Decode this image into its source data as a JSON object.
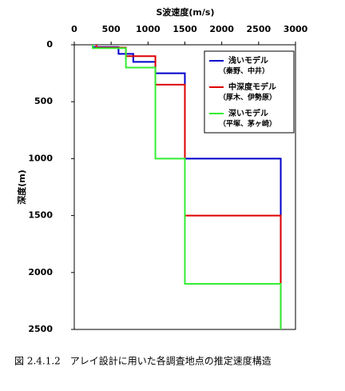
{
  "chart_data": {
    "type": "line",
    "title": "S波速度(m/s)",
    "y_label": "深度(m)",
    "caption": "図 2.4.1.2　アレイ設計に用いた各調査地点の推定速度構造",
    "xlim": [
      0,
      3000
    ],
    "xticks": [
      0,
      500,
      1000,
      1500,
      2000,
      2500,
      3000
    ],
    "ylim": [
      0,
      2500
    ],
    "yticks": [
      0,
      500,
      1000,
      1500,
      2000,
      2500
    ],
    "y_inverted": true,
    "x_axis_top": true,
    "legend_position": "upper right",
    "series": [
      {
        "name": "浅いモデル",
        "note": "（秦野、中井）",
        "color": "#0000cc",
        "x": [
          250,
          250,
          600,
          600,
          800,
          800,
          1100,
          1100,
          1500,
          1500,
          2800,
          2800
        ],
        "values": [
          0,
          20,
          20,
          80,
          80,
          150,
          150,
          250,
          250,
          1000,
          1000,
          2500
        ]
      },
      {
        "name": "中深度モデル",
        "note": "（厚木、伊勢原）",
        "color": "#dd0000",
        "x": [
          300,
          300,
          700,
          700,
          1100,
          1100,
          1500,
          1500,
          2800,
          2800
        ],
        "values": [
          0,
          25,
          25,
          100,
          100,
          350,
          350,
          1500,
          1500,
          2500
        ]
      },
      {
        "name": "深いモデル",
        "note": "（平塚、茅ヶ崎）",
        "color": "#33ee33",
        "x": [
          250,
          250,
          700,
          700,
          1100,
          1100,
          1500,
          1500,
          2800,
          2800
        ],
        "values": [
          0,
          30,
          30,
          200,
          200,
          1000,
          1000,
          2100,
          2100,
          2500
        ]
      }
    ]
  }
}
